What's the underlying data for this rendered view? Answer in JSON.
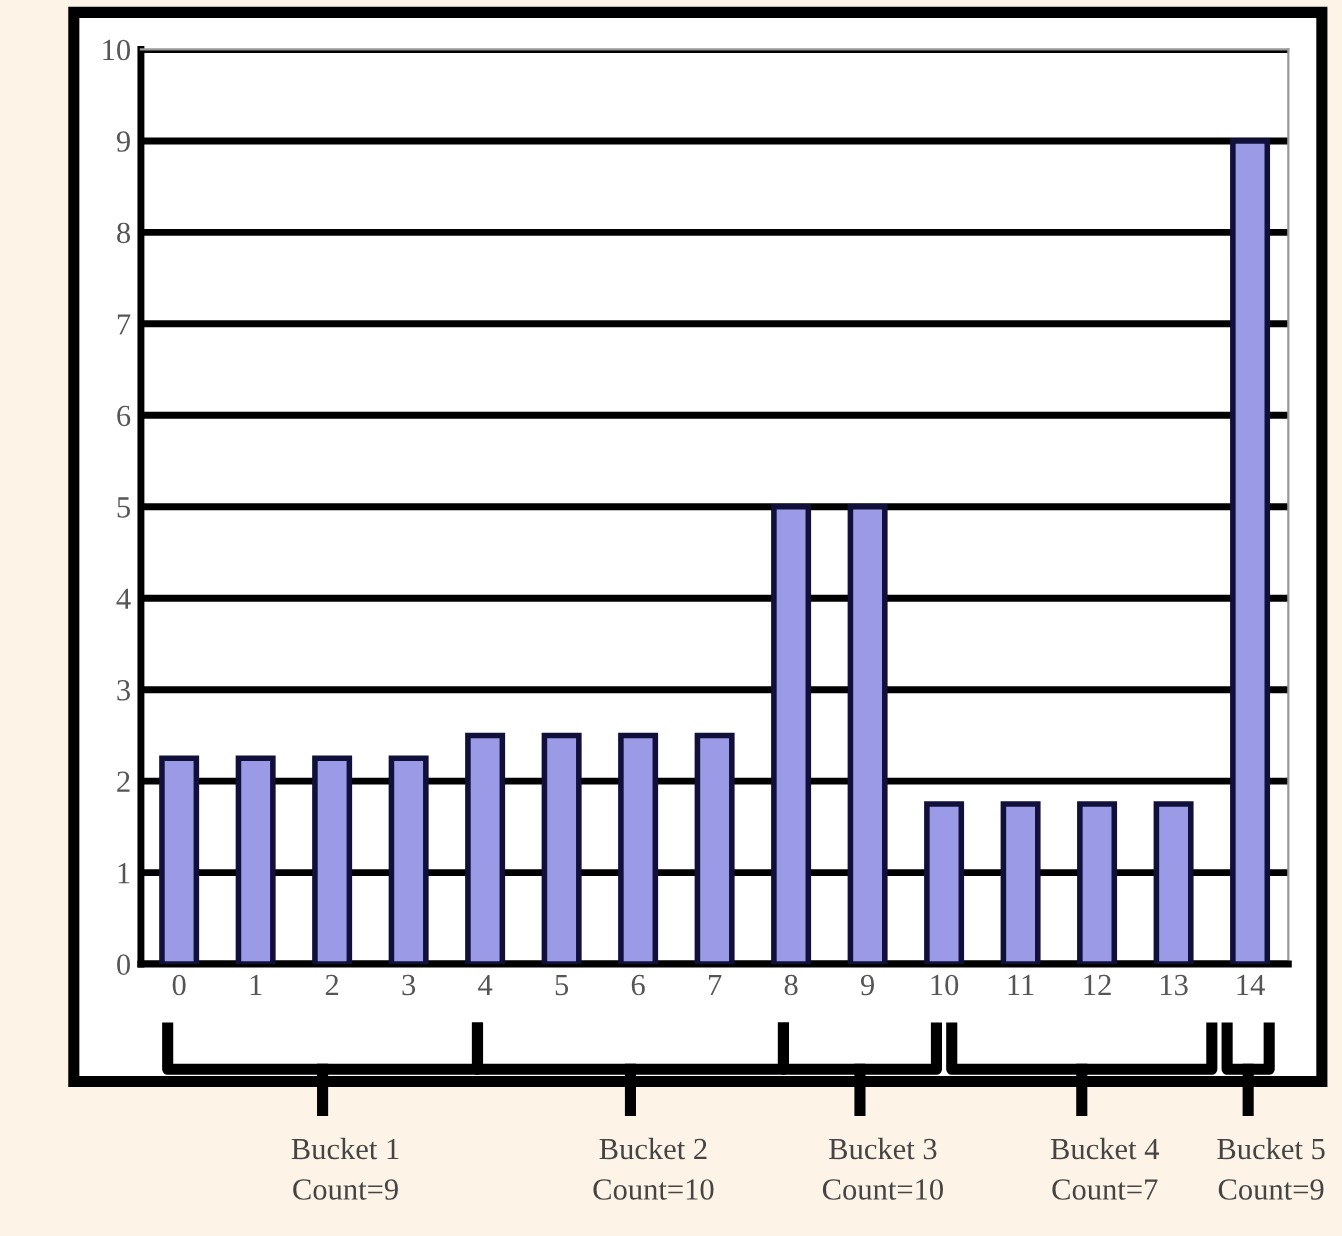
{
  "chart_data": {
    "type": "bar",
    "categories": [
      "0",
      "1",
      "2",
      "3",
      "4",
      "5",
      "6",
      "7",
      "8",
      "9",
      "10",
      "11",
      "12",
      "13",
      "14"
    ],
    "values": [
      2.25,
      2.25,
      2.25,
      2.25,
      2.5,
      2.5,
      2.5,
      2.5,
      5,
      5,
      1.75,
      1.75,
      1.75,
      1.75,
      9
    ],
    "color": "#9a9ae6",
    "ylim": [
      0,
      10
    ],
    "yticks": [
      0,
      1,
      2,
      3,
      4,
      5,
      6,
      7,
      8,
      9,
      10
    ],
    "grid": "y",
    "annotations": [
      "Bucket 1\nCount=9",
      "Bucket 2\nCount=10",
      "Bucket 3\nCount=10",
      "Bucket 4\nCount=7",
      "Bucket 5\nCount=9"
    ]
  }
}
